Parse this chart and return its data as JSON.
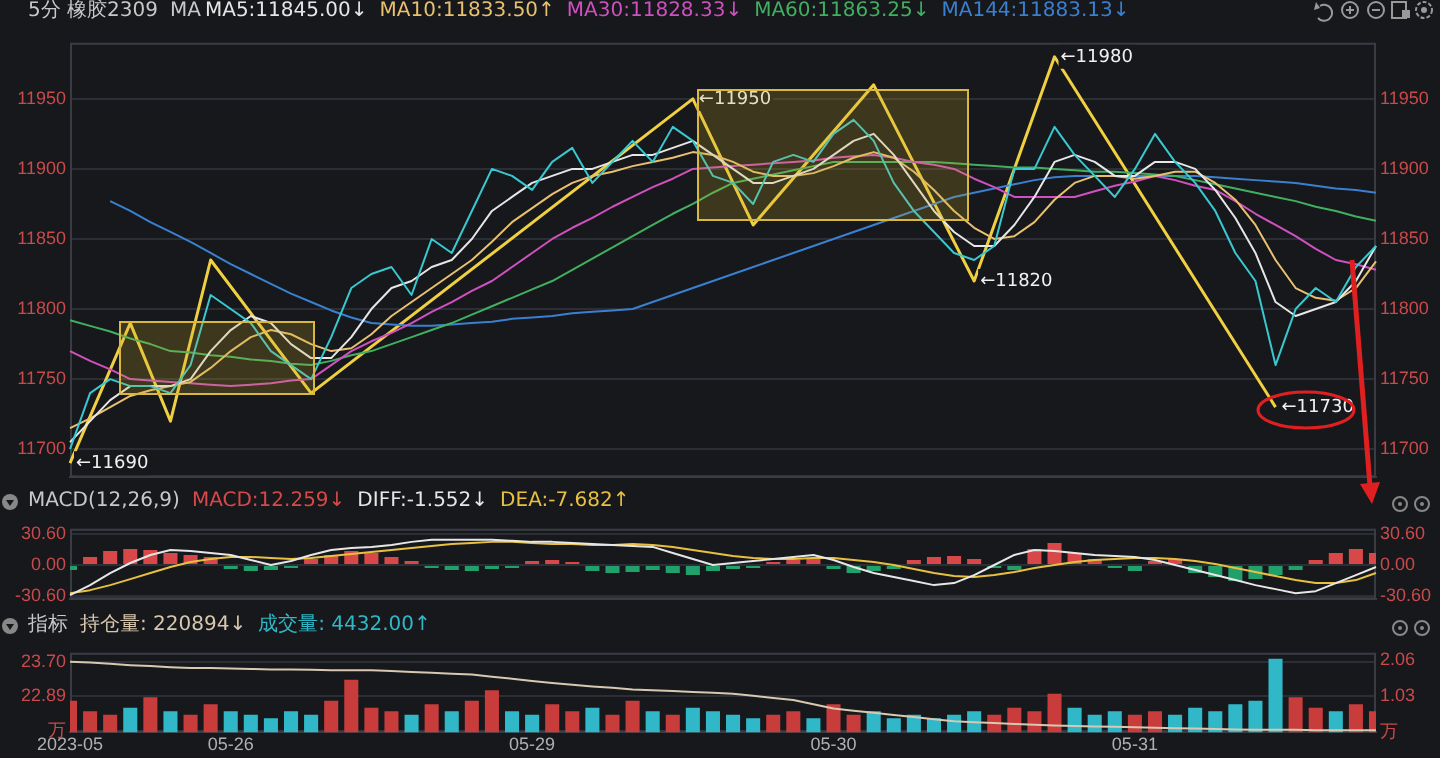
{
  "chart_data": [
    {
      "type": "line",
      "title": "5分 橡胶2309",
      "legend_title": "MA",
      "legend": "top left",
      "grid": "y",
      "tick_labels": "y",
      "categories": [
        null,
        null,
        null,
        null,
        null,
        null,
        null,
        null,
        null,
        null,
        null,
        null,
        null,
        null,
        null,
        null,
        null,
        null,
        null,
        null,
        null,
        null,
        null,
        null,
        null,
        null,
        null,
        null,
        null,
        null,
        null,
        null,
        null,
        null,
        null,
        null,
        null,
        null,
        null,
        null,
        null,
        null,
        null,
        null,
        null,
        null,
        null,
        null,
        null,
        null,
        null,
        null,
        null,
        null,
        null,
        null,
        null,
        null,
        null,
        null,
        null,
        null,
        null,
        null,
        null,
        null
      ],
      "ylim": [
        11680,
        11990
      ],
      "yticks": [
        11700,
        11750,
        11800,
        11850,
        11900,
        11950
      ],
      "y2lim": [
        11680,
        11990
      ],
      "y2ticks": [
        11700,
        11750,
        11800,
        11850,
        11900,
        11950
      ],
      "series": [
        {
          "color": "#38c8d0",
          "values": [
            11700,
            11740,
            11750,
            11745,
            11745,
            11740,
            11760,
            11810,
            11800,
            11790,
            11770,
            11760,
            11750,
            11780,
            11815,
            11825,
            11830,
            11810,
            11850,
            11840,
            11870,
            11900,
            11895,
            11885,
            11905,
            11915,
            11890,
            11905,
            11920,
            11905,
            11930,
            11920,
            11895,
            11890,
            11875,
            11905,
            11910,
            11905,
            11925,
            11935,
            11920,
            11890,
            11870,
            11855,
            11840,
            11835,
            11845,
            11900,
            11900,
            11930,
            11910,
            11895,
            11880,
            11900,
            11925,
            11905,
            11890,
            11870,
            11840,
            11820,
            11760,
            11800,
            11815,
            11805,
            11830,
            11845
          ]
        },
        {
          "name": "MA5:11845.00↓",
          "color": "#e6e6e6",
          "values": [
            11705,
            11720,
            11735,
            11745,
            11745,
            11745,
            11750,
            11770,
            11785,
            11795,
            11790,
            11775,
            11765,
            11765,
            11780,
            11800,
            11815,
            11820,
            11830,
            11835,
            11850,
            11870,
            11880,
            11890,
            11895,
            11900,
            11900,
            11905,
            11910,
            11910,
            11915,
            11920,
            11910,
            11900,
            11890,
            11890,
            11895,
            11900,
            11910,
            11920,
            11925,
            11910,
            11890,
            11870,
            11855,
            11845,
            11845,
            11860,
            11880,
            11905,
            11910,
            11905,
            11895,
            11895,
            11905,
            11905,
            11900,
            11885,
            11865,
            11840,
            11805,
            11795,
            11800,
            11805,
            11820,
            11845
          ]
        },
        {
          "name": "MA10:11833.50↑",
          "color": "#e8c070",
          "values": [
            11715,
            11722,
            11730,
            11738,
            11742,
            11745,
            11748,
            11758,
            11770,
            11780,
            11785,
            11782,
            11775,
            11770,
            11772,
            11782,
            11795,
            11805,
            11815,
            11825,
            11835,
            11848,
            11862,
            11872,
            11882,
            11890,
            11895,
            11898,
            11902,
            11905,
            11908,
            11912,
            11910,
            11905,
            11898,
            11895,
            11895,
            11897,
            11902,
            11908,
            11912,
            11908,
            11898,
            11885,
            11870,
            11858,
            11850,
            11852,
            11862,
            11878,
            11890,
            11895,
            11895,
            11893,
            11895,
            11898,
            11898,
            11890,
            11878,
            11860,
            11835,
            11815,
            11808,
            11806,
            11815,
            11834
          ]
        },
        {
          "name": "MA30:11828.33↓",
          "color": "#d050c0",
          "values": [
            11770,
            11763,
            11757,
            11750,
            11749,
            11748,
            11747,
            11746,
            11745,
            11746,
            11747,
            11749,
            11750,
            11760,
            11770,
            11777,
            11783,
            11790,
            11798,
            11805,
            11813,
            11820,
            11830,
            11840,
            11850,
            11858,
            11865,
            11873,
            11880,
            11887,
            11893,
            11900,
            11901,
            11902,
            11903,
            11904,
            11905,
            11906,
            11908,
            11909,
            11910,
            11908,
            11905,
            11903,
            11900,
            11893,
            11887,
            11880,
            11880,
            11880,
            11880,
            11884,
            11888,
            11891,
            11895,
            11892,
            11888,
            11885,
            11877,
            11868,
            11860,
            11852,
            11843,
            11835,
            11832,
            11828
          ]
        },
        {
          "name": "MA60:11863.25↓",
          "color": "#40b060",
          "values": [
            11792,
            11788,
            11784,
            11779,
            11775,
            11770,
            11769,
            11767,
            11766,
            11764,
            11763,
            11761,
            11760,
            11763,
            11767,
            11770,
            11775,
            11780,
            11785,
            11790,
            11796,
            11802,
            11808,
            11814,
            11820,
            11828,
            11836,
            11844,
            11852,
            11860,
            11868,
            11875,
            11883,
            11890,
            11893,
            11896,
            11899,
            11902,
            11905,
            11905,
            11905,
            11905,
            11905,
            11905,
            11904,
            11903,
            11902,
            11901,
            11901,
            11900,
            11899,
            11898,
            11898,
            11897,
            11896,
            11895,
            11892,
            11889,
            11886,
            11883,
            11880,
            11877,
            11873,
            11870,
            11866,
            11863
          ]
        },
        {
          "name": "MA144:11883.13↓",
          "color": "#3a80d0",
          "values": [
            null,
            null,
            11877,
            11870,
            11862,
            11855,
            11848,
            11840,
            11832,
            11825,
            11818,
            11811,
            11805,
            11799,
            11794,
            11790,
            11789,
            11788,
            11788,
            11789,
            11790,
            11791,
            11793,
            11794,
            11795,
            11797,
            11798,
            11799,
            11800,
            11805,
            11810,
            11815,
            11820,
            11825,
            11830,
            11835,
            11840,
            11845,
            11850,
            11855,
            11860,
            11865,
            11870,
            11875,
            11880,
            11883,
            11886,
            11889,
            11892,
            11894,
            11895,
            11895,
            11895,
            11895,
            11895,
            11895,
            11895,
            11894,
            11893,
            11892,
            11891,
            11890,
            11888,
            11886,
            11885,
            11883
          ]
        },
        {
          "color": "#f0d040",
          "values": [
            11690,
            null,
            null,
            11790,
            null,
            11720,
            null,
            11835,
            null,
            null,
            null,
            null,
            11740,
            null,
            null,
            null,
            null,
            null,
            null,
            null,
            null,
            null,
            null,
            null,
            null,
            null,
            null,
            null,
            null,
            null,
            null,
            11950,
            null,
            null,
            11860,
            null,
            null,
            null,
            null,
            null,
            11960,
            null,
            null,
            null,
            null,
            11820,
            null,
            null,
            null,
            11980,
            null,
            null,
            null,
            null,
            null,
            null,
            null,
            null,
            null,
            null,
            11730,
            null,
            null,
            null,
            null,
            null
          ],
          "value_labels": [
            "←11690",
            null,
            null,
            null,
            null,
            null,
            null,
            null,
            null,
            null,
            null,
            null,
            null,
            null,
            null,
            null,
            null,
            null,
            null,
            null,
            null,
            null,
            null,
            null,
            null,
            null,
            null,
            null,
            null,
            null,
            null,
            "←11950",
            null,
            null,
            null,
            null,
            null,
            null,
            null,
            null,
            null,
            null,
            null,
            null,
            null,
            "←11820",
            null,
            null,
            null,
            "←11980",
            null,
            null,
            null,
            null,
            null,
            null,
            null,
            null,
            null,
            null,
            "←11730",
            null,
            null,
            null,
            null,
            null
          ]
        }
      ]
    },
    {
      "type": "bar",
      "title": "MACD(12,26,9)",
      "legend": "top left",
      "grid": "y",
      "tick_labels": "y",
      "categories": [
        null,
        null,
        null,
        null,
        null,
        null,
        null,
        null,
        null,
        null,
        null,
        null,
        null,
        null,
        null,
        null,
        null,
        null,
        null,
        null,
        null,
        null,
        null,
        null,
        null,
        null,
        null,
        null,
        null,
        null,
        null,
        null,
        null,
        null,
        null,
        null,
        null,
        null,
        null,
        null,
        null,
        null,
        null,
        null,
        null,
        null,
        null,
        null,
        null,
        null,
        null,
        null,
        null,
        null,
        null,
        null,
        null,
        null,
        null,
        null,
        null,
        null,
        null,
        null,
        null,
        null
      ],
      "ylim": [
        -34,
        36
      ],
      "yticks": [
        {
          "value": 30.6,
          "label": "30.60"
        },
        {
          "value": 0,
          "label": "0.00"
        },
        {
          "value": -30.6,
          "label": "-30.60"
        }
      ],
      "y2lim": [
        -34,
        36
      ],
      "y2ticks": [
        {
          "value": 30.6,
          "label": "30.60"
        },
        {
          "value": 0,
          "label": "0.00"
        },
        {
          "value": -30.6,
          "label": "-30.60"
        }
      ],
      "series": [
        {
          "name": "MACD:12.259↓",
          "color": "#d84848",
          "values": [
            null,
            8,
            14,
            16,
            15,
            12,
            10,
            8,
            null,
            null,
            null,
            null,
            6,
            10,
            14,
            12,
            8,
            4,
            null,
            null,
            null,
            null,
            null,
            4,
            5,
            3,
            null,
            null,
            null,
            null,
            null,
            null,
            null,
            null,
            null,
            3,
            5,
            6,
            null,
            null,
            null,
            null,
            5,
            8,
            9,
            6,
            null,
            null,
            16,
            22,
            12,
            6,
            null,
            null,
            4,
            6,
            null,
            null,
            null,
            null,
            null,
            null,
            5,
            12,
            16,
            12
          ]
        },
        {
          "color": "#22a06b",
          "values": [
            -5,
            null,
            null,
            null,
            null,
            null,
            null,
            null,
            -4,
            -6,
            -5,
            -3,
            null,
            null,
            null,
            null,
            null,
            null,
            -3,
            -5,
            -6,
            -4,
            -3,
            null,
            null,
            null,
            -6,
            -8,
            -7,
            -5,
            -8,
            -10,
            -6,
            -4,
            -3,
            null,
            null,
            null,
            -4,
            -8,
            -6,
            -4,
            null,
            null,
            null,
            null,
            -3,
            -5,
            null,
            null,
            null,
            null,
            -3,
            -6,
            null,
            null,
            -8,
            -12,
            -16,
            -14,
            -10,
            -5,
            null,
            null,
            null,
            null
          ]
        },
        {
          "name": "DIFF:-1.552↓",
          "type": "line",
          "color": "#e6e6e6",
          "values": [
            -30,
            -20,
            -8,
            2,
            10,
            15,
            14,
            12,
            10,
            5,
            0,
            4,
            10,
            15,
            17,
            18,
            20,
            23,
            25,
            25,
            25,
            25,
            24,
            23,
            23,
            22,
            21,
            20,
            19,
            18,
            12,
            6,
            0,
            2,
            4,
            6,
            8,
            10,
            5,
            -2,
            -8,
            -12,
            -16,
            -20,
            -18,
            -10,
            0,
            10,
            15,
            14,
            12,
            10,
            9,
            8,
            5,
            0,
            -5,
            -10,
            -15,
            -20,
            -24,
            -28,
            -26,
            -18,
            -10,
            -2
          ]
        },
        {
          "name": "DEA:-7.682↑",
          "type": "line",
          "color": "#e8c040",
          "values": [
            -28,
            -25,
            -20,
            -14,
            -8,
            -2,
            3,
            6,
            8,
            8,
            7,
            6,
            7,
            9,
            11,
            13,
            15,
            17,
            19,
            21,
            22,
            23,
            23,
            22,
            21,
            21,
            20,
            20,
            21,
            20,
            18,
            15,
            12,
            9,
            7,
            6,
            6,
            7,
            7,
            5,
            3,
            0,
            -4,
            -8,
            -11,
            -12,
            -10,
            -7,
            -3,
            0,
            3,
            5,
            6,
            7,
            7,
            6,
            4,
            1,
            -3,
            -7,
            -11,
            -15,
            -18,
            -18,
            -15,
            -8
          ]
        }
      ]
    },
    {
      "type": "bar",
      "title": "指标",
      "legend": "top left",
      "grid": "y",
      "categories": [
        "2023-05",
        null,
        null,
        null,
        null,
        null,
        null,
        null,
        "05-26",
        null,
        null,
        null,
        null,
        null,
        null,
        null,
        null,
        null,
        null,
        null,
        null,
        null,
        null,
        "05-29",
        null,
        null,
        null,
        null,
        null,
        null,
        null,
        null,
        null,
        null,
        null,
        null,
        null,
        null,
        "05-30",
        null,
        null,
        null,
        null,
        null,
        null,
        null,
        null,
        null,
        null,
        null,
        null,
        null,
        null,
        "05-31",
        null,
        null,
        null,
        null,
        null,
        null,
        null,
        null,
        null,
        null,
        null,
        null
      ],
      "ylim": [
        22.04,
        23.91
      ],
      "yticks": [
        {
          "value": 23.7,
          "label": "23.70"
        },
        22.89,
        {
          "value": 22.08,
          "label": "万"
        }
      ],
      "y2lim": [
        0,
        2.27
      ],
      "y2ticks": [
        2.06,
        1.03,
        {
          "value": 0,
          "label": "万"
        }
      ],
      "series": [
        {
          "name": "持仓量: 220894↓",
          "type": "line",
          "color": "#d8c8b0",
          "values": [
            23.7,
            23.68,
            23.65,
            23.62,
            23.6,
            23.57,
            23.55,
            23.55,
            23.54,
            23.53,
            23.52,
            23.52,
            23.51,
            23.5,
            23.5,
            23.5,
            23.48,
            23.46,
            23.44,
            23.42,
            23.4,
            23.35,
            23.3,
            23.25,
            23.2,
            23.16,
            23.12,
            23.09,
            23.05,
            23.03,
            23.01,
            22.99,
            22.97,
            22.95,
            22.9,
            22.85,
            22.8,
            22.7,
            22.6,
            22.55,
            22.5,
            22.45,
            22.4,
            22.35,
            22.3,
            22.28,
            22.26,
            22.24,
            22.22,
            22.2,
            22.19,
            22.18,
            22.17,
            22.16,
            22.15,
            22.14,
            22.13,
            22.12,
            22.11,
            22.1,
            22.1,
            22.1,
            22.09,
            22.09,
            22.09,
            22.09
          ]
        },
        {
          "axis": "y2",
          "color": "#c83c3c",
          "values": [
            0.9,
            0.6,
            0.5,
            null,
            1.0,
            null,
            0.5,
            0.8,
            null,
            null,
            null,
            null,
            null,
            0.9,
            1.5,
            0.7,
            0.6,
            null,
            0.8,
            null,
            0.9,
            1.2,
            null,
            null,
            0.8,
            0.6,
            null,
            0.5,
            0.9,
            null,
            0.5,
            null,
            null,
            null,
            null,
            0.5,
            0.6,
            null,
            0.8,
            0.5,
            null,
            null,
            null,
            null,
            null,
            null,
            0.5,
            0.7,
            0.6,
            1.1,
            null,
            null,
            null,
            0.5,
            0.6,
            null,
            null,
            null,
            null,
            null,
            null,
            1.0,
            0.7,
            null,
            0.8,
            0.6
          ]
        },
        {
          "name": "成交量: 4432.00↑",
          "axis": "y2",
          "color": "#30b8c8",
          "values": [
            null,
            null,
            null,
            0.7,
            null,
            0.6,
            null,
            null,
            0.6,
            0.5,
            0.4,
            0.6,
            0.5,
            null,
            null,
            null,
            null,
            0.5,
            null,
            0.6,
            null,
            null,
            0.6,
            0.5,
            null,
            null,
            0.7,
            null,
            null,
            0.6,
            null,
            0.7,
            0.6,
            0.5,
            0.4,
            null,
            null,
            0.4,
            null,
            null,
            0.6,
            0.4,
            0.5,
            0.4,
            0.5,
            0.6,
            null,
            null,
            null,
            null,
            0.7,
            0.5,
            0.6,
            null,
            null,
            0.5,
            0.7,
            0.6,
            0.8,
            0.9,
            2.1,
            null,
            null,
            0.6,
            null,
            null
          ]
        }
      ]
    }
  ]
}
